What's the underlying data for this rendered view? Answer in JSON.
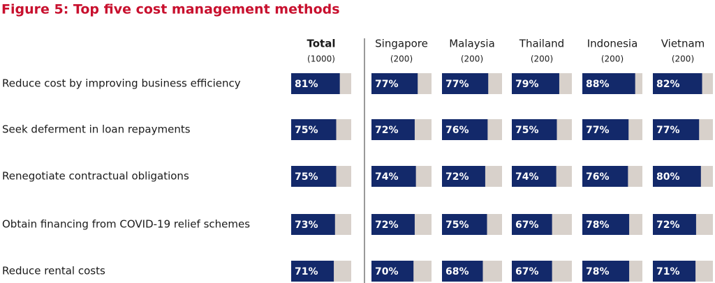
{
  "chart_data": {
    "type": "bar",
    "title": "Figure 5: Top five cost management methods",
    "categories": [
      "Reduce cost by improving business efficiency",
      "Seek deferment in loan repayments",
      "Renegotiate contractual obligations",
      "Obtain financing from COVID-19 relief schemes",
      "Reduce rental costs"
    ],
    "xlim": [
      0,
      100
    ],
    "color": "#13296a",
    "track_color": "#d8d1cb",
    "series": [
      {
        "name": "Total",
        "sample": "(1000)",
        "values": [
          81,
          75,
          75,
          73,
          71
        ],
        "value_labels": [
          "81%",
          "75%",
          "75%",
          "73%",
          "71%"
        ]
      },
      {
        "name": "Singapore",
        "sample": "(200)",
        "values": [
          77,
          72,
          74,
          72,
          70
        ],
        "value_labels": [
          "77%",
          "72%",
          "74%",
          "72%",
          "70%"
        ]
      },
      {
        "name": "Malaysia",
        "sample": "(200)",
        "values": [
          77,
          76,
          72,
          75,
          68
        ],
        "value_labels": [
          "77%",
          "76%",
          "72%",
          "75%",
          "68%"
        ]
      },
      {
        "name": "Thailand",
        "sample": "(200)",
        "values": [
          79,
          75,
          74,
          67,
          67
        ],
        "value_labels": [
          "79%",
          "75%",
          "74%",
          "67%",
          "67%"
        ]
      },
      {
        "name": "Indonesia",
        "sample": "(200)",
        "values": [
          88,
          77,
          76,
          78,
          78
        ],
        "value_labels": [
          "88%",
          "77%",
          "76%",
          "78%",
          "78%"
        ]
      },
      {
        "name": "Vietnam",
        "sample": "(200)",
        "values": [
          82,
          77,
          80,
          72,
          71
        ],
        "value_labels": [
          "82%",
          "77%",
          "80%",
          "72%",
          "71%"
        ]
      }
    ]
  }
}
